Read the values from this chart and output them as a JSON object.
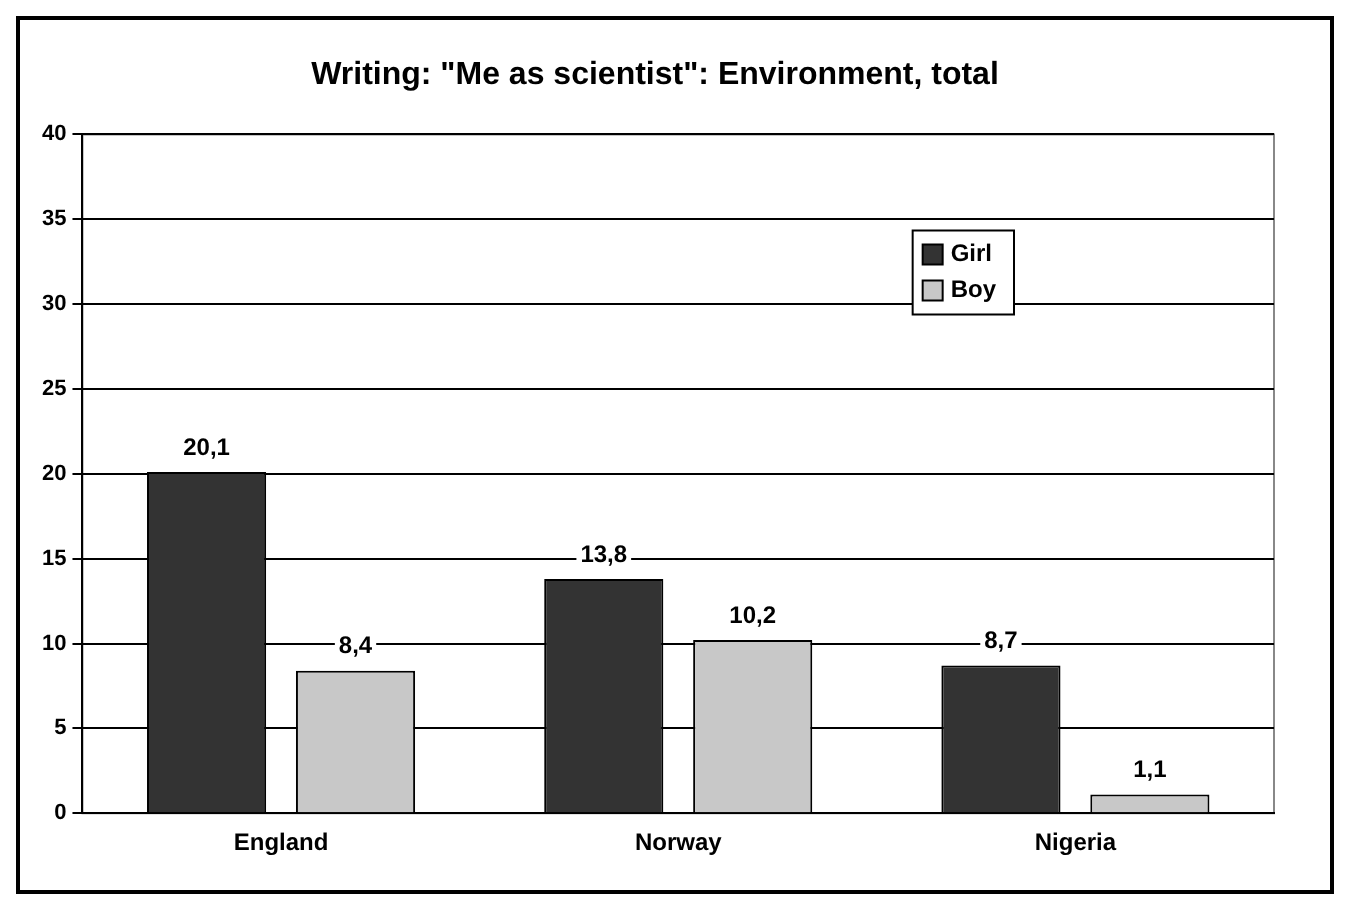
{
  "chart_data": {
    "type": "bar",
    "title": "Writing: \"Me as scientist\": Environment, total",
    "categories": [
      "England",
      "Norway",
      "Nigeria"
    ],
    "series": [
      {
        "name": "Girl",
        "color": "#333333",
        "values": [
          20.1,
          13.8,
          8.7
        ],
        "value_labels": [
          "20,1",
          "13,8",
          "8,7"
        ]
      },
      {
        "name": "Boy",
        "color": "#c8c8c8",
        "values": [
          8.4,
          10.2,
          1.1
        ],
        "value_labels": [
          "8,4",
          "10,2",
          "1,1"
        ]
      }
    ],
    "ylim": [
      0,
      40
    ],
    "yticks": [
      0,
      5,
      10,
      15,
      20,
      25,
      30,
      35,
      40
    ],
    "grid": "y",
    "legend": "top right"
  }
}
